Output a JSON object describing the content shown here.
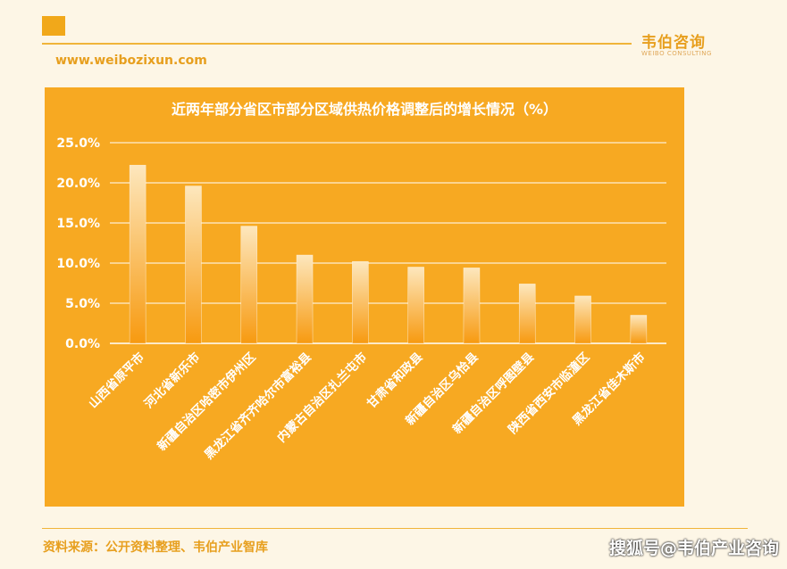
{
  "header": {
    "brand_cn": "韦伯咨询",
    "brand_en": "WEIBO CONSULTING",
    "url": "www.weibozixun.com"
  },
  "footer": {
    "source": "资料来源：公开资料整理、韦伯产业智库",
    "watermark": "搜狐号@韦伯产业咨询"
  },
  "colors": {
    "accent": "#f1a81a",
    "panel": "#f7a922",
    "page": "#fdf6e6",
    "bar_top": "#fde7bd",
    "bar_bottom": "#f79a10"
  },
  "chart_data": {
    "type": "bar",
    "title": "近两年部分省区市部分区域供热价格调整后的增长情况（%）",
    "categories": [
      "山西省原平市",
      "河北省新乐市",
      "新疆自治区哈密市伊州区",
      "黑龙江省齐齐哈尔市富裕县",
      "内蒙古自治区扎兰屯市",
      "甘肃省和政县",
      "新疆自治区乌恰县",
      "新疆自治区呼图壁县",
      "陕西省西安市临潼区",
      "黑龙江省佳木斯市"
    ],
    "values": [
      22.2,
      19.6,
      14.6,
      11.0,
      10.2,
      9.5,
      9.4,
      7.4,
      5.9,
      3.5
    ],
    "yticks": [
      "0.0%",
      "5.0%",
      "10.0%",
      "15.0%",
      "20.0%",
      "25.0%"
    ],
    "ylim": [
      0,
      25
    ],
    "grid": true,
    "legend": "none"
  }
}
